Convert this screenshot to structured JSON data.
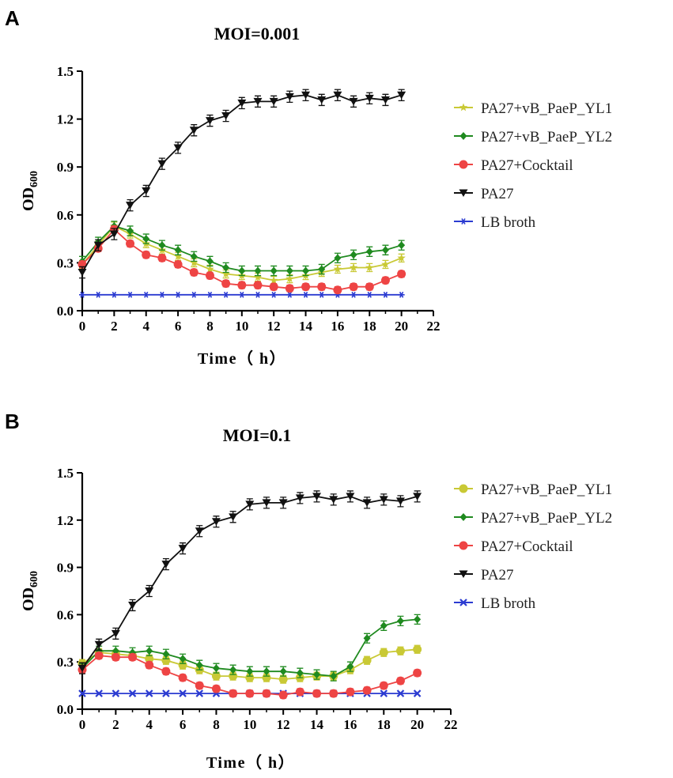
{
  "chart_data": [
    {
      "panel": "A",
      "type": "line",
      "title": "MOI=0.001",
      "xlabel": "Time（ h）",
      "ylabel": "OD",
      "ylabel_sub": "600",
      "xlim": [
        0,
        22
      ],
      "ylim": [
        0,
        1.5
      ],
      "x_ticks": [
        "0",
        "2",
        "4",
        "6",
        "8",
        "10",
        "12",
        "14",
        "16",
        "18",
        "20",
        "22"
      ],
      "y_ticks": [
        "0.0",
        "0.3",
        "0.6",
        "0.9",
        "1.2",
        "1.5"
      ],
      "x": [
        0,
        1,
        2,
        3,
        4,
        5,
        6,
        7,
        8,
        9,
        10,
        11,
        12,
        13,
        14,
        15,
        16,
        17,
        18,
        19,
        20
      ],
      "series": [
        {
          "name": "PA27+vB_PaeP_YL1",
          "color": "#c9c935",
          "marker": "star",
          "values": [
            0.29,
            0.41,
            0.53,
            0.48,
            0.42,
            0.38,
            0.34,
            0.3,
            0.26,
            0.23,
            0.22,
            0.21,
            0.19,
            0.2,
            0.22,
            0.24,
            0.26,
            0.27,
            0.27,
            0.29,
            0.33
          ]
        },
        {
          "name": "PA27+vB_PaeP_YL2",
          "color": "#1f8a1f",
          "marker": "diamond",
          "values": [
            0.31,
            0.43,
            0.53,
            0.5,
            0.45,
            0.41,
            0.38,
            0.34,
            0.31,
            0.27,
            0.25,
            0.25,
            0.25,
            0.25,
            0.25,
            0.26,
            0.33,
            0.35,
            0.37,
            0.38,
            0.41
          ]
        },
        {
          "name": "PA27+Cocktail",
          "color": "#ee4444",
          "marker": "circle",
          "values": [
            0.29,
            0.39,
            0.51,
            0.42,
            0.35,
            0.33,
            0.29,
            0.24,
            0.22,
            0.17,
            0.16,
            0.16,
            0.15,
            0.14,
            0.15,
            0.15,
            0.13,
            0.15,
            0.15,
            0.19,
            0.23
          ]
        },
        {
          "name": "PA27",
          "color": "#111111",
          "marker": "triangle-down",
          "values": [
            0.24,
            0.41,
            0.48,
            0.66,
            0.75,
            0.92,
            1.02,
            1.13,
            1.19,
            1.22,
            1.3,
            1.31,
            1.31,
            1.34,
            1.35,
            1.32,
            1.35,
            1.31,
            1.33,
            1.32,
            1.35
          ]
        },
        {
          "name": "LB broth",
          "color": "#2b3bd1",
          "marker": "asterisk",
          "values": [
            0.1,
            0.1,
            0.1,
            0.1,
            0.1,
            0.1,
            0.1,
            0.1,
            0.1,
            0.1,
            0.1,
            0.1,
            0.1,
            0.1,
            0.1,
            0.1,
            0.1,
            0.1,
            0.1,
            0.1,
            0.1
          ]
        }
      ]
    },
    {
      "panel": "B",
      "type": "line",
      "title": "MOI=0.1",
      "xlabel": "Time（ h）",
      "ylabel": "OD",
      "ylabel_sub": "600",
      "xlim": [
        0,
        22
      ],
      "ylim": [
        0,
        1.5
      ],
      "x_ticks": [
        "0",
        "2",
        "4",
        "6",
        "8",
        "10",
        "12",
        "14",
        "16",
        "18",
        "20",
        "22"
      ],
      "y_ticks": [
        "0.0",
        "0.3",
        "0.6",
        "0.9",
        "1.2",
        "1.5"
      ],
      "x": [
        0,
        1,
        2,
        3,
        4,
        5,
        6,
        7,
        8,
        9,
        10,
        11,
        12,
        13,
        14,
        15,
        16,
        17,
        18,
        19,
        20
      ],
      "series": [
        {
          "name": "PA27+vB_PaeP_YL1",
          "color": "#c9c935",
          "marker": "circle",
          "values": [
            0.29,
            0.36,
            0.35,
            0.34,
            0.32,
            0.31,
            0.28,
            0.25,
            0.21,
            0.21,
            0.2,
            0.2,
            0.19,
            0.2,
            0.21,
            0.21,
            0.25,
            0.31,
            0.36,
            0.37,
            0.38
          ]
        },
        {
          "name": "PA27+vB_PaeP_YL2",
          "color": "#1f8a1f",
          "marker": "diamond",
          "values": [
            0.26,
            0.37,
            0.37,
            0.36,
            0.37,
            0.35,
            0.32,
            0.28,
            0.26,
            0.25,
            0.24,
            0.24,
            0.24,
            0.23,
            0.22,
            0.21,
            0.27,
            0.45,
            0.53,
            0.56,
            0.57
          ]
        },
        {
          "name": "PA27+Cocktail",
          "color": "#ee4444",
          "marker": "circle",
          "values": [
            0.25,
            0.34,
            0.33,
            0.33,
            0.28,
            0.24,
            0.2,
            0.15,
            0.13,
            0.1,
            0.1,
            0.1,
            0.09,
            0.11,
            0.1,
            0.1,
            0.11,
            0.12,
            0.15,
            0.18,
            0.23
          ]
        },
        {
          "name": "PA27",
          "color": "#111111",
          "marker": "triangle-down",
          "values": [
            0.26,
            0.41,
            0.48,
            0.66,
            0.75,
            0.92,
            1.02,
            1.13,
            1.19,
            1.22,
            1.3,
            1.31,
            1.31,
            1.34,
            1.35,
            1.33,
            1.35,
            1.31,
            1.33,
            1.32,
            1.35
          ]
        },
        {
          "name": "LB broth",
          "color": "#2b3bd1",
          "marker": "x",
          "values": [
            0.1,
            0.1,
            0.1,
            0.1,
            0.1,
            0.1,
            0.1,
            0.1,
            0.1,
            0.1,
            0.1,
            0.1,
            0.1,
            0.1,
            0.1,
            0.1,
            0.1,
            0.1,
            0.1,
            0.1,
            0.1
          ]
        }
      ]
    }
  ]
}
